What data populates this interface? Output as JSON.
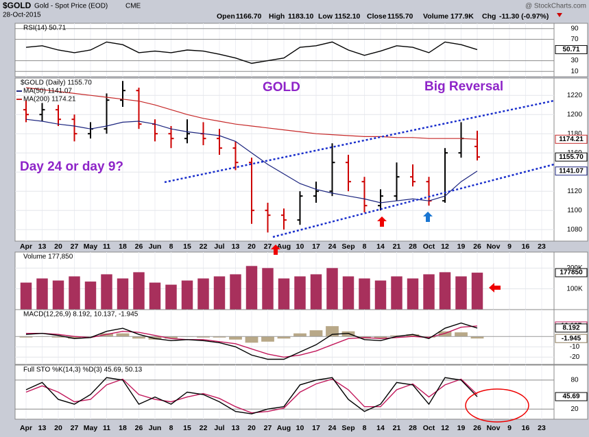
{
  "header": {
    "symbol": "$GOLD",
    "name": "Gold - Spot Price (EOD)",
    "exchange": "CME",
    "date": "28-Oct-2015",
    "watermark": "@ StockCharts.com",
    "quote": [
      {
        "label": "Open",
        "value": "1166.70"
      },
      {
        "label": "High",
        "value": "1183.10"
      },
      {
        "label": "Low",
        "value": "1152.10"
      },
      {
        "label": "Close",
        "value": "1155.70"
      },
      {
        "label": "Volume",
        "value": "177.9K"
      },
      {
        "label": "Chg",
        "value": "-11.30 (-0.97%)"
      }
    ]
  },
  "chart_data": [
    {
      "type": "line",
      "legend": "RSI(14) 50.71",
      "ylim": [
        0,
        100
      ],
      "yticks": [
        10,
        30,
        70,
        90
      ],
      "series": [
        {
          "color": "#000000",
          "values": [
            55,
            58,
            50,
            45,
            50,
            65,
            60,
            45,
            48,
            45,
            50,
            48,
            42,
            35,
            25,
            30,
            35,
            55,
            58,
            65,
            50,
            40,
            48,
            58,
            55,
            45,
            65,
            60,
            50.71,
            null,
            null,
            null,
            null
          ]
        }
      ],
      "marker_labels": [
        {
          "value": 50.71,
          "label": "50.71",
          "color": "#000000"
        }
      ]
    },
    {
      "type": "ohlc",
      "name": "$GOLD (Daily) 1155.70",
      "color": "#000000",
      "down_color": "#cc0000",
      "categories": [
        "Apr",
        "13",
        "20",
        "27",
        "May",
        "11",
        "18",
        "26",
        "Jun",
        "8",
        "15",
        "22",
        "Jul",
        "13",
        "20",
        "27",
        "Aug",
        "10",
        "17",
        "24",
        "Sep",
        "8",
        "14",
        "21",
        "28",
        "Oct",
        "12",
        "19",
        "26",
        "Nov",
        "9",
        "16",
        "23"
      ],
      "open": [
        1205,
        1200,
        1205,
        1195,
        1180,
        1185,
        1215,
        1225,
        1190,
        1180,
        1175,
        1180,
        1175,
        1165,
        1150,
        1100,
        1095,
        1090,
        1115,
        1120,
        1150,
        1130,
        1105,
        1115,
        1135,
        1130,
        1110,
        1160,
        1166.7,
        null,
        null,
        null,
        null
      ],
      "high": [
        1215,
        1212,
        1210,
        1200,
        1192,
        1222,
        1235,
        1228,
        1195,
        1188,
        1195,
        1192,
        1185,
        1172,
        1155,
        1108,
        1102,
        1120,
        1130,
        1170,
        1158,
        1135,
        1122,
        1150,
        1148,
        1135,
        1165,
        1192,
        1183.1,
        null,
        null,
        null,
        null
      ],
      "low": [
        1192,
        1193,
        1188,
        1172,
        1175,
        1180,
        1208,
        1185,
        1172,
        1165,
        1170,
        1168,
        1158,
        1142,
        1086,
        1077,
        1080,
        1085,
        1108,
        1115,
        1120,
        1098,
        1100,
        1110,
        1125,
        1105,
        1108,
        1155,
        1152.1,
        null,
        null,
        null,
        null
      ],
      "close": [
        1200,
        1205,
        1195,
        1180,
        1185,
        1215,
        1225,
        1190,
        1180,
        1175,
        1180,
        1175,
        1165,
        1150,
        1100,
        1095,
        1090,
        1115,
        1120,
        1150,
        1130,
        1105,
        1115,
        1135,
        1130,
        1110,
        1160,
        1175,
        1155.7,
        null,
        null,
        null,
        null
      ],
      "series": [
        {
          "name": "MA(50) 1141.07",
          "color": "#1a237e",
          "values": [
            1195,
            1193,
            1190,
            1188,
            1185,
            1188,
            1192,
            1193,
            1190,
            1185,
            1182,
            1180,
            1178,
            1172,
            1160,
            1148,
            1138,
            1128,
            1122,
            1118,
            1115,
            1112,
            1108,
            1110,
            1112,
            1110,
            1115,
            1130,
            1141.07,
            null,
            null,
            null,
            null
          ]
        },
        {
          "name": "MA(200) 1174.21",
          "color": "#c62828",
          "values": [
            1228,
            1226,
            1224,
            1222,
            1220,
            1218,
            1216,
            1214,
            1210,
            1205,
            1200,
            1196,
            1193,
            1190,
            1188,
            1186,
            1184,
            1182,
            1180,
            1179,
            1178,
            1177,
            1177,
            1176,
            1176,
            1175,
            1175,
            1175,
            1174.21,
            null,
            null,
            null,
            null
          ]
        }
      ],
      "ylim": [
        1068,
        1238
      ],
      "yticks": [
        1080,
        1100,
        1120,
        1140,
        1160,
        1180,
        1200,
        1220
      ],
      "marker_labels": [
        {
          "value": 1174.21,
          "label": "1174.21",
          "color": "#c62828"
        },
        {
          "value": 1155.7,
          "label": "1155.70",
          "color": "#000000"
        },
        {
          "value": 1141.07,
          "label": "1141.07",
          "color": "#1a237e"
        }
      ],
      "annotations": [
        "GOLD",
        "Big Reversal",
        "Day 24 or day 9?"
      ]
    },
    {
      "type": "bar",
      "legend": "Volume 177,850",
      "color": "#a8305c",
      "values": [
        130000,
        150000,
        140000,
        160000,
        135000,
        170000,
        150000,
        180000,
        130000,
        120000,
        140000,
        150000,
        160000,
        170000,
        210000,
        200000,
        150000,
        160000,
        170000,
        200000,
        160000,
        150000,
        140000,
        160000,
        150000,
        170000,
        180000,
        160000,
        177850,
        null,
        null,
        null,
        null
      ],
      "ylim": [
        0,
        277000
      ],
      "yticks": [
        {
          "value": 100000,
          "label": "100K"
        },
        {
          "value": 200000,
          "label": "200K"
        }
      ],
      "marker_labels": [
        {
          "value": 177850,
          "label": "177850",
          "color": "#000000"
        }
      ]
    },
    {
      "type": "line",
      "legend": "MACD(12,26,9) 8.192, 10.137, -1.945",
      "ylim": [
        -27,
        26
      ],
      "yticks": [
        -20,
        -10
      ],
      "series": [
        {
          "color": "#b8a888",
          "style": "bar",
          "values": [
            -1,
            0,
            -1,
            -2,
            0,
            3,
            3,
            -2,
            -3,
            -2,
            0,
            -1,
            -1,
            -3,
            -6,
            -5,
            -2,
            3,
            6,
            10,
            5,
            -2,
            -2,
            1,
            2,
            -1,
            5,
            4,
            -1.945,
            null,
            null,
            null,
            null
          ]
        },
        {
          "color": "#c2185b",
          "values": [
            3,
            3,
            2,
            0,
            -1,
            2,
            5,
            4,
            1,
            -2,
            -3,
            -3,
            -5,
            -7,
            -12,
            -17,
            -20,
            -18,
            -14,
            -8,
            -2,
            -1,
            -2,
            -1,
            0,
            -1,
            3,
            9,
            10.137,
            null,
            null,
            null,
            null
          ]
        },
        {
          "color": "#000000",
          "values": [
            2,
            3,
            1,
            -2,
            -1,
            5,
            8,
            2,
            -2,
            -4,
            -3,
            -4,
            -6,
            -10,
            -18,
            -22,
            -22,
            -15,
            -8,
            2,
            3,
            -3,
            -4,
            0,
            2,
            -2,
            8,
            13,
            8.192,
            null,
            null,
            null,
            null
          ]
        }
      ],
      "marker_labels": [
        {
          "value": 10.137,
          "label": "10.137",
          "color": "#c2185b"
        },
        {
          "value": 8.192,
          "label": "8.192",
          "color": "#000000"
        },
        {
          "value": -1.945,
          "label": "-1.945",
          "color": "#8a7a5a"
        }
      ]
    },
    {
      "type": "line",
      "legend": "Full STO %K(14,3) %D(3) 45.69, 50.13",
      "ylim": [
        -1,
        111
      ],
      "yticks": [
        20,
        80
      ],
      "series": [
        {
          "color": "#c2185b",
          "values": [
            55,
            68,
            55,
            35,
            40,
            70,
            82,
            50,
            40,
            35,
            45,
            52,
            42,
            25,
            12,
            15,
            22,
            55,
            72,
            82,
            60,
            25,
            25,
            60,
            72,
            45,
            70,
            82,
            50.13,
            null,
            null,
            null,
            null
          ]
        },
        {
          "color": "#000000",
          "values": [
            60,
            75,
            40,
            30,
            50,
            85,
            80,
            30,
            45,
            30,
            55,
            50,
            35,
            15,
            10,
            20,
            25,
            70,
            80,
            85,
            40,
            15,
            30,
            75,
            70,
            30,
            85,
            80,
            45.69,
            null,
            null,
            null,
            null
          ]
        }
      ],
      "marker_labels": [
        {
          "value": 45.69,
          "label": "45.69",
          "color": "#000000"
        }
      ]
    }
  ]
}
